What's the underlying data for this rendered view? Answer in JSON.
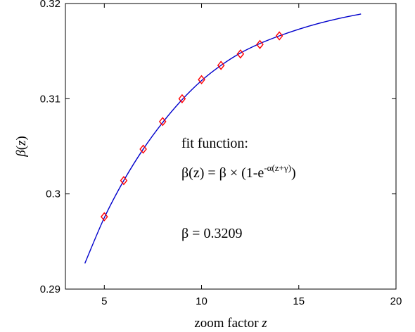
{
  "chart_data": {
    "type": "line",
    "title": "",
    "xlabel": "zoom factor z",
    "ylabel": "β(z)",
    "xlim": [
      3,
      20
    ],
    "ylim": [
      0.29,
      0.32
    ],
    "xticks": [
      5,
      10,
      15,
      20
    ],
    "yticks": [
      0.29,
      0.3,
      0.31,
      0.32
    ],
    "grid": false,
    "legend": "none",
    "series": [
      {
        "kind": "fit-curve",
        "color": "#0000cc",
        "x": [
          4,
          5,
          6,
          7,
          8,
          9,
          10,
          11,
          12,
          13,
          14,
          15,
          16,
          17,
          18.2
        ],
        "y": [
          0.2927,
          0.2975,
          0.3014,
          0.3047,
          0.3075,
          0.3099,
          0.3119,
          0.3135,
          0.3148,
          0.3158,
          0.3166,
          0.3173,
          0.3179,
          0.3184,
          0.3189
        ]
      },
      {
        "kind": "data-points",
        "marker": "diamond",
        "color": "#ff0000",
        "x": [
          5,
          6,
          7,
          8,
          9,
          10,
          11,
          12,
          13,
          14
        ],
        "y": [
          0.2976,
          0.3014,
          0.3047,
          0.3076,
          0.31,
          0.312,
          0.3135,
          0.3147,
          0.3157,
          0.3166
        ]
      }
    ],
    "annotations": {
      "fit_title": "fit function:",
      "fit_formula_lhs": "β(z) = β × (1-e",
      "fit_formula_exp": "-α(z+γ)",
      "fit_formula_close": ")",
      "beta_value": "β = 0.3209"
    }
  }
}
